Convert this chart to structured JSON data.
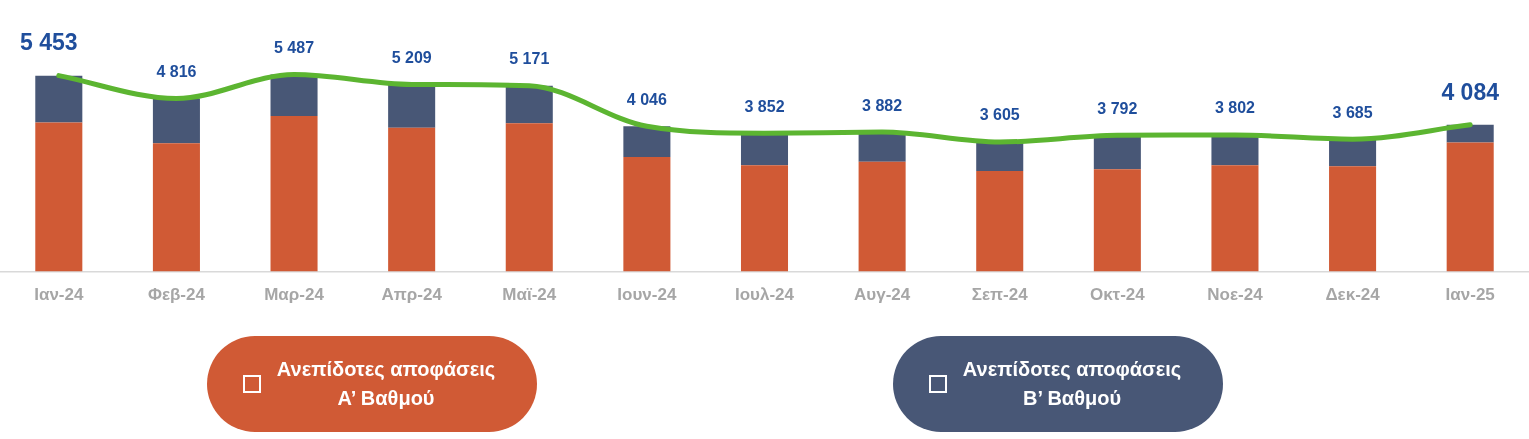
{
  "chart_data": {
    "type": "bar",
    "stacked": true,
    "categories": [
      "Ιαν-24",
      "Φεβ-24",
      "Μαρ-24",
      "Απρ-24",
      "Μαϊ-24",
      "Ιουν-24",
      "Ιουλ-24",
      "Αυγ-24",
      "Σεπ-24",
      "Οκτ-24",
      "Νοε-24",
      "Δεκ-24",
      "Ιαν-25"
    ],
    "series": [
      {
        "name": "Ανεπίδοτες αποφάσεις Α’ Βαθμού",
        "color": "#d05a35",
        "values": [
          4150,
          3570,
          4330,
          4000,
          4130,
          3190,
          2960,
          3060,
          2800,
          2850,
          2960,
          2930,
          3590
        ]
      },
      {
        "name": "Ανεπίδοτες αποφάσεις Β’ Βαθμού",
        "color": "#485776",
        "values": [
          1303,
          1246,
          1157,
          1209,
          1041,
          856,
          892,
          822,
          805,
          942,
          842,
          755,
          494
        ]
      },
      {
        "type": "line",
        "color": "#5cb531",
        "values": [
          5453,
          4816,
          5487,
          5209,
          5171,
          4046,
          3852,
          3882,
          3605,
          3792,
          3802,
          3685,
          4084
        ],
        "value_labels": [
          "5 453",
          "4 816",
          "5 487",
          "5 209",
          "5 171",
          "4 046",
          "3 852",
          "3 882",
          "3 605",
          "3 792",
          "3 802",
          "3 685",
          "4 084"
        ]
      }
    ],
    "legend": "bottom",
    "grid": false
  }
}
